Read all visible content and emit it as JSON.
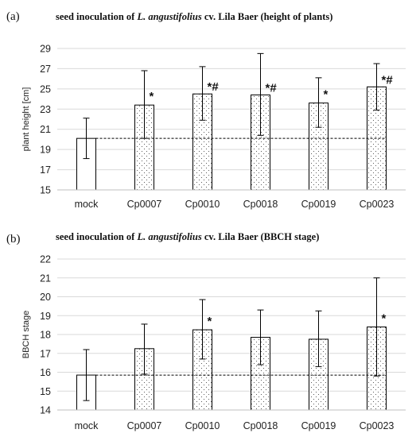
{
  "chart_data": [
    {
      "panel": "(a)",
      "type": "bar",
      "title_parts": [
        {
          "text": "seed inoculation of ",
          "italic": false
        },
        {
          "text": "L. angustifolius",
          "italic": true
        },
        {
          "text": " cv. Lila Baer (height of plants)",
          "italic": false
        }
      ],
      "xlabel": "",
      "ylabel": "plant height [cm]",
      "ylim": [
        15,
        29
      ],
      "yticks": [
        15,
        17,
        19,
        21,
        23,
        25,
        27,
        29
      ],
      "grid": true,
      "categories": [
        "mock",
        "Cp0007",
        "Cp0010",
        "Cp0018",
        "Cp0019",
        "Cp0023"
      ],
      "values": [
        20.1,
        23.4,
        24.5,
        24.4,
        23.6,
        25.2
      ],
      "error_low": [
        18.1,
        20.1,
        21.9,
        20.4,
        21.2,
        22.9
      ],
      "error_high": [
        22.1,
        26.8,
        27.2,
        28.5,
        26.1,
        27.5
      ],
      "annotations": [
        "",
        "*",
        "*#",
        "*#",
        "*",
        "*#"
      ],
      "reference_line": 20.1
    },
    {
      "panel": "(b)",
      "type": "bar",
      "title_parts": [
        {
          "text": "seed inoculation of ",
          "italic": false
        },
        {
          "text": "L. angustifolius",
          "italic": true
        },
        {
          "text": " cv. Lila Baer  (BBCH stage)",
          "italic": false
        }
      ],
      "xlabel": "",
      "ylabel": "BBCH stage",
      "ylim": [
        14,
        22
      ],
      "yticks": [
        14,
        15,
        16,
        17,
        18,
        19,
        20,
        21,
        22
      ],
      "grid": true,
      "categories": [
        "mock",
        "Cp0007",
        "Cp0010",
        "Cp0018",
        "Cp0019",
        "Cp0023"
      ],
      "values": [
        15.85,
        17.25,
        18.25,
        17.85,
        17.75,
        18.4
      ],
      "error_low": [
        14.5,
        15.9,
        16.7,
        16.4,
        16.3,
        15.8
      ],
      "error_high": [
        17.2,
        18.55,
        19.85,
        19.3,
        19.25,
        21.0
      ],
      "annotations": [
        "",
        "",
        "*",
        "",
        "",
        "*"
      ],
      "reference_line": 15.85
    }
  ]
}
